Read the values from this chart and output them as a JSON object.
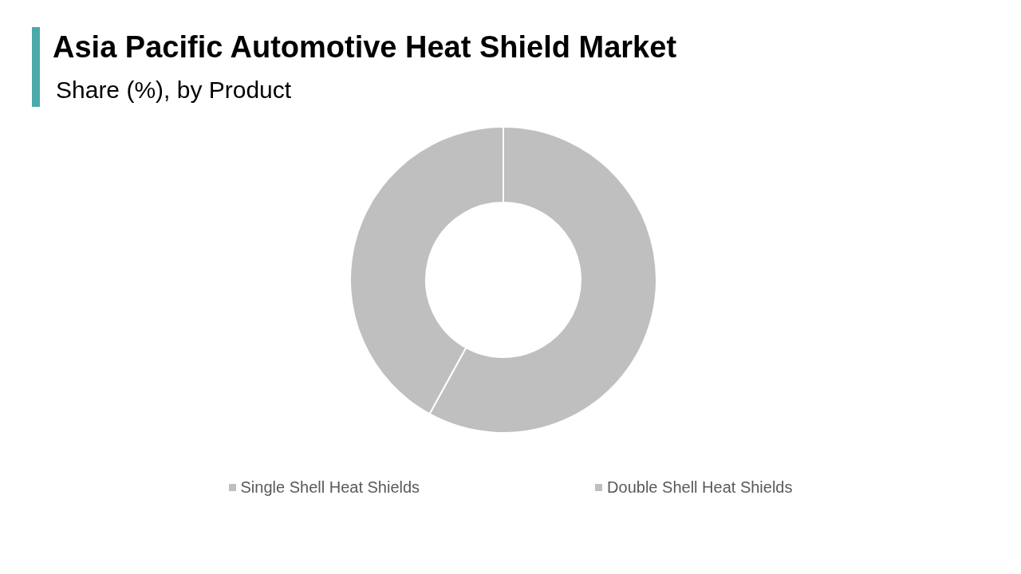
{
  "chart_data": {
    "type": "donut",
    "title": "Asia Pacific Automotive Heat Shield Market",
    "subtitle": "Share (%), by Product",
    "categories": [
      "Single Shell Heat Shields",
      "Double Shell Heat Shields"
    ],
    "values": [
      58,
      42
    ],
    "colors": [
      "#bfbfbf",
      "#bfbfbf"
    ],
    "legend": "bottom"
  }
}
